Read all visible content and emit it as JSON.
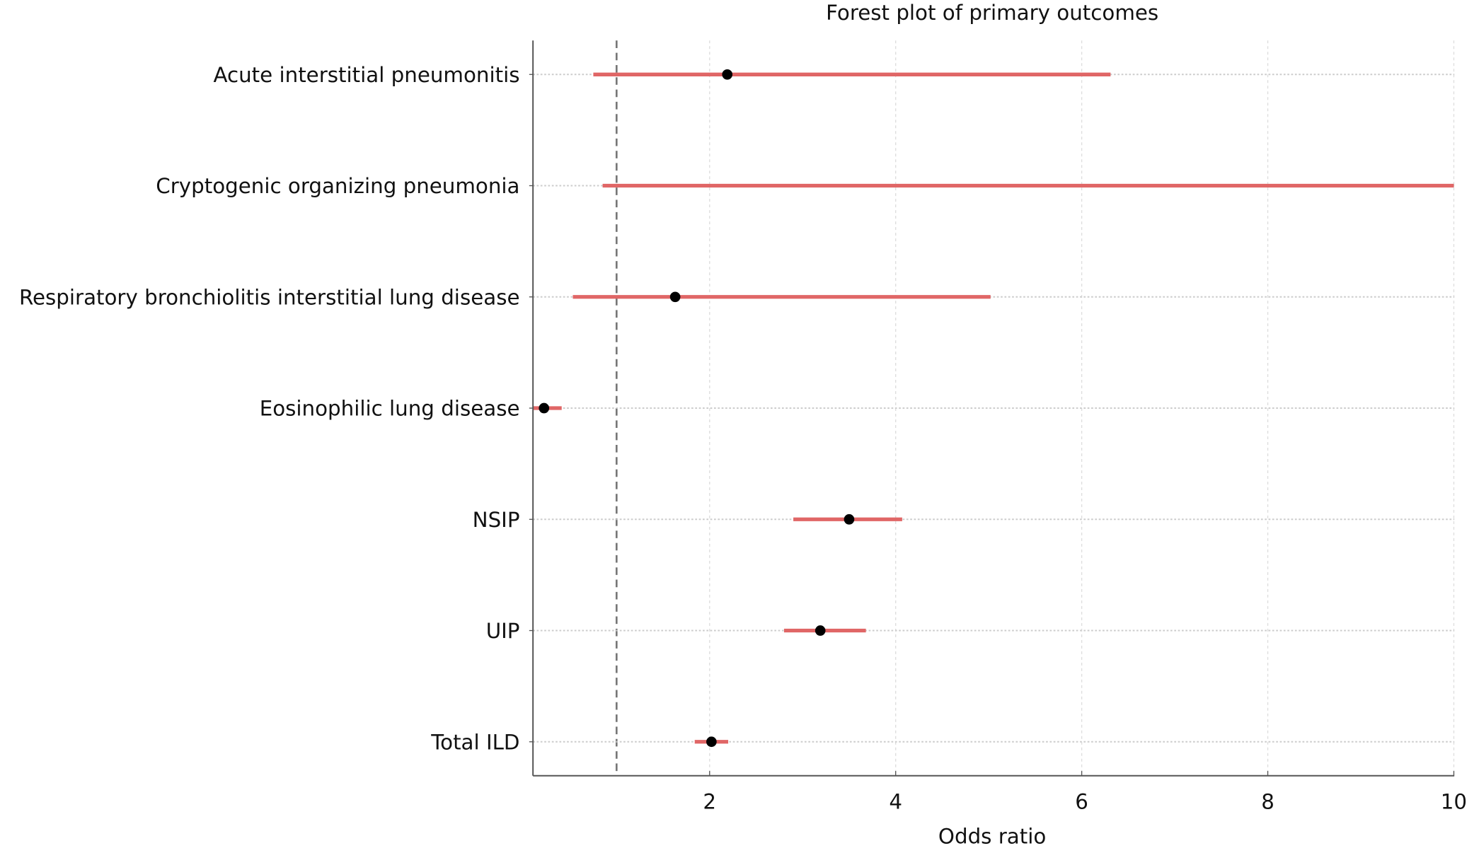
{
  "chart_data": {
    "type": "forest",
    "title": "Forest plot of primary outcomes",
    "xlabel": "Odds ratio",
    "ylabel": "",
    "xlim": [
      0.1,
      10
    ],
    "xticks": [
      "2",
      "4",
      "6",
      "8",
      "10"
    ],
    "reference_line": 1,
    "grid": true,
    "colors": {
      "ci": "#e06666",
      "point": "#000000",
      "reference": "#777777"
    },
    "rows": [
      {
        "label": "Acute interstitial pneumonitis",
        "or": 2.19,
        "lower": 0.75,
        "upper": 6.31
      },
      {
        "label": "Cryptogenic organizing pneumonia",
        "or": null,
        "lower": 0.85,
        "upper": 10
      },
      {
        "label": "Respiratory bronchiolitis interstitial lung disease",
        "or": 1.63,
        "lower": 0.53,
        "upper": 5.02
      },
      {
        "label": "Eosinophilic lung disease",
        "or": 0.22,
        "lower": 0.1,
        "upper": 0.41
      },
      {
        "label": "NSIP",
        "or": 3.5,
        "lower": 2.9,
        "upper": 4.07
      },
      {
        "label": "UIP",
        "or": 3.19,
        "lower": 2.8,
        "upper": 3.68
      },
      {
        "label": "Total ILD",
        "or": 2.02,
        "lower": 1.84,
        "upper": 2.2
      }
    ]
  }
}
